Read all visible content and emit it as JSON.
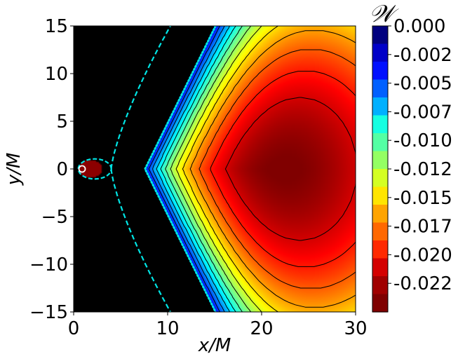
{
  "chart_data": {
    "type": "heatmap",
    "title": "",
    "xlabel": "x/M",
    "ylabel": "y/M",
    "xlim": [
      0,
      30
    ],
    "ylim": [
      -15,
      15
    ],
    "x_ticks": [
      0,
      10,
      20,
      30
    ],
    "y_ticks": [
      -15,
      -10,
      -5,
      0,
      5,
      10,
      15
    ],
    "x_tick_labels": [
      "0",
      "10",
      "20",
      "30"
    ],
    "y_tick_labels": [
      "−15",
      "−10",
      "−5",
      "0",
      "5",
      "10",
      "15"
    ],
    "colorbar": {
      "title": "𝒲",
      "colormap": "jet (reversed)",
      "tick_values": [
        0.0,
        -0.0025,
        -0.005,
        -0.0075,
        -0.01,
        -0.0125,
        -0.015,
        -0.0175,
        -0.02,
        -0.0225
      ],
      "tick_labels": [
        "0.000",
        "-0.002",
        "-0.005",
        "-0.007",
        "-0.010",
        "-0.012",
        "-0.015",
        "-0.017",
        "-0.020",
        "-0.022"
      ],
      "range": [
        -0.025,
        0.0
      ],
      "levels": 16,
      "colors": [
        "#00007f",
        "#0000c8",
        "#0010ff",
        "#0060ff",
        "#00b0ff",
        "#16ffe1",
        "#54ffa4",
        "#94ff63",
        "#d4ff23",
        "#ffe500",
        "#ffa400",
        "#ff6800",
        "#ff2900",
        "#d40000",
        "#a00000",
        "#7f0000"
      ]
    },
    "regions": [
      {
        "name": "black region",
        "color": "#000000",
        "x_range": [
          0,
          8
        ]
      },
      {
        "name": "inner lobe",
        "color": "#8b0000",
        "center": [
          1.8,
          0
        ]
      }
    ],
    "curves": [
      {
        "name": "dotted boundary",
        "color": "#00e5e5",
        "style": "dotted",
        "vertex": [
          7.5,
          0
        ],
        "ends": [
          [
            15.0,
            15
          ],
          [
            15.0,
            -15
          ]
        ]
      },
      {
        "name": "dashed separatrix",
        "color": "#00e5e5",
        "style": "dashed",
        "crossing": [
          4.0,
          0
        ],
        "ends": [
          [
            10.3,
            15
          ],
          [
            10.3,
            -15
          ]
        ]
      },
      {
        "name": "dashed loop",
        "color": "#00e5e5",
        "style": "dashed",
        "x_range": [
          0.5,
          4.0
        ]
      }
    ],
    "marker": {
      "x": 0.9,
      "y": 0.0,
      "color": "#ffffff"
    },
    "contours": {
      "color": "#000000",
      "count": 12,
      "minimum_at": [
        19,
        0
      ]
    }
  }
}
